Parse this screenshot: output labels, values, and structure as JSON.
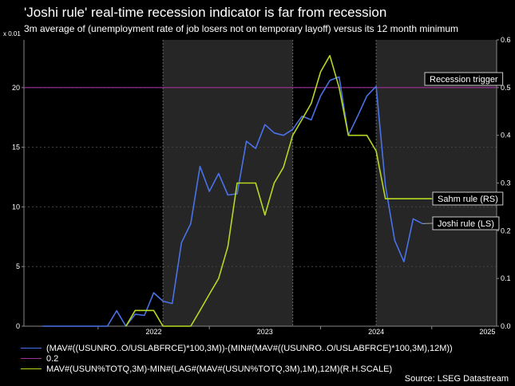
{
  "title": "'Joshi rule' real-time recession indicator is far from recession",
  "subtitle": "3m average of (unemployment rate of job losers not on temporary layoff) versus its 12 month minimum",
  "left_axis_unit": "x 0.01",
  "source": "Source: LSEG Datastream",
  "colors": {
    "background": "#000000",
    "joshi": "#4a72e8",
    "threshold": "#a0309a",
    "sahm": "#b5d823",
    "grid": "#444444",
    "shade": "#262626"
  },
  "legend": [
    {
      "label": "(MAV#((USUNRO..O/USLABFRCE)*100,3M))-(MIN#(MAV#((USUNRO..O/USLABFRCE)*100,3M),12M))",
      "color": "#4a72e8"
    },
    {
      "label": "0.2",
      "color": "#a0309a"
    },
    {
      "label": "MAV#(USUN%TOTQ,3M)-MIN#(LAG#(MAV#(USUN%TOTQ,3M),1M),12M)(R.H.SCALE)",
      "color": "#b5d823"
    }
  ],
  "chart_data": {
    "type": "line",
    "x_ticks": [
      "2022",
      "2023",
      "2024",
      "2025"
    ],
    "y_left_ticks": [
      "0",
      "5",
      "10",
      "15",
      "20"
    ],
    "y_right_ticks": [
      "0.0",
      "0.1",
      "0.2",
      "0.3",
      "0.4",
      "0.5",
      "0.6"
    ],
    "y_left_range": [
      0,
      24
    ],
    "y_right_range": [
      0,
      0.6
    ],
    "x_range": [
      "2021-05",
      "2025-08"
    ],
    "annotations": [
      "Recession trigger",
      "Sahm rule (RS)",
      "Joshi rule (LS)"
    ],
    "series": [
      {
        "axis": "left",
        "x": [
          "2021-07",
          "2021-08",
          "2021-09",
          "2021-10",
          "2021-11",
          "2021-12",
          "2022-01",
          "2022-02",
          "2022-03",
          "2022-04",
          "2022-05",
          "2022-06",
          "2022-07",
          "2022-08",
          "2022-09",
          "2022-10",
          "2022-11",
          "2022-12",
          "2023-01",
          "2023-02",
          "2023-03",
          "2023-04",
          "2023-05",
          "2023-06",
          "2023-07",
          "2023-08",
          "2023-09",
          "2023-10",
          "2023-11",
          "2023-12",
          "2024-01",
          "2024-02",
          "2024-03",
          "2024-04",
          "2024-05",
          "2024-06",
          "2024-07",
          "2024-08",
          "2024-09",
          "2024-10",
          "2024-11",
          "2024-12"
        ],
        "y": [
          0,
          0,
          0,
          0,
          0,
          0,
          0,
          0,
          1.3,
          0,
          1,
          0.9,
          2.8,
          2.1,
          1.9,
          7,
          8.6,
          13.4,
          11.3,
          12.8,
          11,
          11.1,
          15.5,
          14.9,
          16.9,
          16.2,
          16,
          16.5,
          17.6,
          17.3,
          19.3,
          20.6,
          20.9,
          16,
          17.6,
          19.3,
          20.1,
          11.8,
          7.2,
          5.4,
          9,
          8.6
        ]
      },
      {
        "axis": "right",
        "x": [
          "2022-04",
          "2022-05",
          "2022-06",
          "2022-07",
          "2022-08",
          "2022-09",
          "2022-10",
          "2022-11",
          "2022-12",
          "2023-01",
          "2023-02",
          "2023-03",
          "2023-04",
          "2023-05",
          "2023-06",
          "2023-07",
          "2023-08",
          "2023-09",
          "2023-10",
          "2023-11",
          "2023-12",
          "2024-01",
          "2024-02",
          "2024-03",
          "2024-04",
          "2024-05",
          "2024-06",
          "2024-07",
          "2024-08",
          "2024-09",
          "2024-10",
          "2024-11",
          "2024-12",
          "2025-01"
        ],
        "y": [
          0,
          0.033,
          0.033,
          0.033,
          0,
          0,
          0,
          0,
          0.033,
          0.067,
          0.1,
          0.167,
          0.3,
          0.3,
          0.3,
          0.233,
          0.3,
          0.333,
          0.4,
          0.433,
          0.467,
          0.533,
          0.567,
          0.5,
          0.4,
          0.4,
          0.4,
          0.367,
          0.267,
          0.267,
          0.267,
          0.267,
          0.267,
          0.267
        ]
      }
    ],
    "threshold_left": 20,
    "recession_shading": [
      [
        "2022-08",
        "2023-10"
      ],
      [
        "2024-07",
        "2025-08"
      ]
    ]
  }
}
